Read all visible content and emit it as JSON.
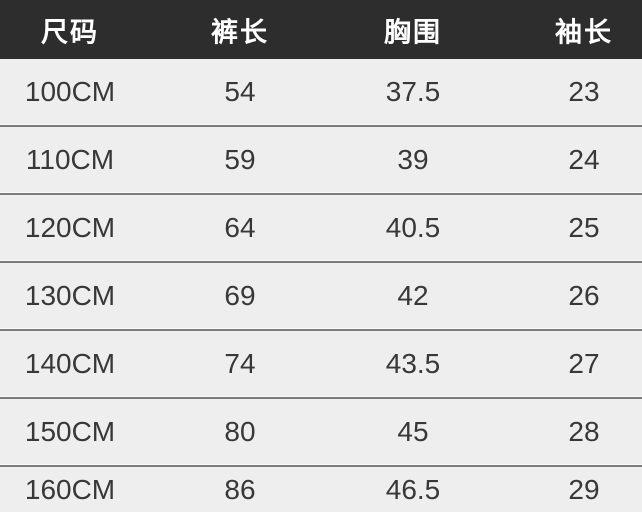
{
  "table": {
    "columns": [
      "尺码",
      "裤长",
      "胸围",
      "袖长"
    ],
    "rows": [
      [
        "100CM",
        "54",
        "37.5",
        "23"
      ],
      [
        "110CM",
        "59",
        "39",
        "24"
      ],
      [
        "120CM",
        "64",
        "40.5",
        "25"
      ],
      [
        "130CM",
        "69",
        "42",
        "26"
      ],
      [
        "140CM",
        "74",
        "43.5",
        "27"
      ],
      [
        "150CM",
        "80",
        "45",
        "28"
      ],
      [
        "160CM",
        "86",
        "46.5",
        "29"
      ]
    ]
  },
  "colors": {
    "header_bg": "#2d2d2d",
    "header_text": "#ffffff",
    "row_bg": "#eeeeee",
    "row_text": "#383838",
    "divider": "#7d7d7d",
    "divider_highlight": "#fafafa"
  },
  "chart_data": {
    "type": "table",
    "title": "",
    "columns": [
      "尺码",
      "裤长",
      "胸围",
      "袖长"
    ],
    "rows": [
      [
        "100CM",
        54,
        37.5,
        23
      ],
      [
        "110CM",
        59,
        39,
        24
      ],
      [
        "120CM",
        64,
        40.5,
        25
      ],
      [
        "130CM",
        69,
        42,
        26
      ],
      [
        "140CM",
        74,
        43.5,
        27
      ],
      [
        "150CM",
        80,
        45,
        28
      ],
      [
        "160CM",
        86,
        46.5,
        29
      ]
    ]
  }
}
